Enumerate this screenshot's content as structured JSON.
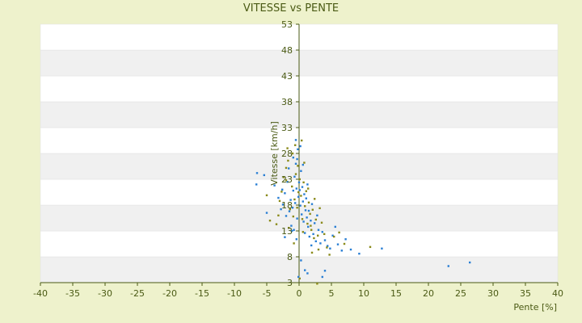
{
  "chart_data": {
    "type": "scatter",
    "title": "VITESSE vs PENTE",
    "xlabel": "Pente [%]",
    "ylabel": "Vitesse [km/h]",
    "xlim": [
      -40,
      40
    ],
    "ylim": [
      3,
      53
    ],
    "xticks": [
      "-40",
      "-35",
      "-30",
      "-25",
      "-20",
      "-15",
      "-10",
      "-5",
      "0",
      "5",
      "10",
      "15",
      "20",
      "25",
      "30",
      "35",
      "40"
    ],
    "yticks": [
      "3",
      "8",
      "13",
      "18",
      "23",
      "28",
      "33",
      "38",
      "43",
      "48",
      "53"
    ],
    "yticks_bottom_label": "3",
    "grid": "horizontal-bands",
    "legend": "none",
    "colors": {
      "background": "#eef2cc",
      "band_light": "#ffffff",
      "band_dark": "#f0f0f0",
      "axis": "#4a5a14",
      "series_blue": "#2a7fd4",
      "series_olive": "#8a8a1a"
    },
    "series": [
      {
        "color": "#2a7fd4",
        "points": [
          [
            -6.5,
            24.2
          ],
          [
            -6.6,
            22.0
          ],
          [
            -5.4,
            23.8
          ],
          [
            -5.0,
            16.5
          ],
          [
            -3.8,
            21.8
          ],
          [
            -3.2,
            19.4
          ],
          [
            -2.8,
            17.2
          ],
          [
            -2.5,
            18.1
          ],
          [
            -2.2,
            20.3
          ],
          [
            -2.0,
            15.9
          ],
          [
            -1.8,
            22.5
          ],
          [
            -1.5,
            16.8
          ],
          [
            -1.3,
            19.0
          ],
          [
            -1.2,
            14.0
          ],
          [
            -1.0,
            17.5
          ],
          [
            -0.9,
            20.8
          ],
          [
            -0.8,
            13.2
          ],
          [
            -0.7,
            23.5
          ],
          [
            -0.6,
            18.4
          ],
          [
            -0.5,
            26.0
          ],
          [
            -0.4,
            21.2
          ],
          [
            -0.3,
            15.4
          ],
          [
            -0.2,
            28.8
          ],
          [
            -0.1,
            19.6
          ],
          [
            0.0,
            22.4
          ],
          [
            0.1,
            20.9
          ],
          [
            0.2,
            17.9
          ],
          [
            0.3,
            24.6
          ],
          [
            0.4,
            16.2
          ],
          [
            0.5,
            21.5
          ],
          [
            0.6,
            18.7
          ],
          [
            0.7,
            14.8
          ],
          [
            0.8,
            20.1
          ],
          [
            0.9,
            12.6
          ],
          [
            1.0,
            17.0
          ],
          [
            1.1,
            19.3
          ],
          [
            1.2,
            15.6
          ],
          [
            1.3,
            22.0
          ],
          [
            1.4,
            13.8
          ],
          [
            1.5,
            16.9
          ],
          [
            1.6,
            11.9
          ],
          [
            1.8,
            15.0
          ],
          [
            2.0,
            18.2
          ],
          [
            2.2,
            12.4
          ],
          [
            2.4,
            14.5
          ],
          [
            2.6,
            11.0
          ],
          [
            2.8,
            16.0
          ],
          [
            3.0,
            13.2
          ],
          [
            3.3,
            10.6
          ],
          [
            3.6,
            12.8
          ],
          [
            4.0,
            11.2
          ],
          [
            4.4,
            10.1
          ],
          [
            4.8,
            9.6
          ],
          [
            5.2,
            12.1
          ],
          [
            5.6,
            13.8
          ],
          [
            6.0,
            10.4
          ],
          [
            6.6,
            9.2
          ],
          [
            7.2,
            11.4
          ],
          [
            8.0,
            9.4
          ],
          [
            9.3,
            8.6
          ],
          [
            12.8,
            9.6
          ],
          [
            23.1,
            6.2
          ],
          [
            26.4,
            6.9
          ],
          [
            0.9,
            5.4
          ],
          [
            1.3,
            4.8
          ],
          [
            3.6,
            4.1
          ],
          [
            4.0,
            5.3
          ],
          [
            -0.1,
            4.1
          ],
          [
            0.3,
            7.3
          ],
          [
            -0.5,
            30.6
          ],
          [
            0.2,
            29.4
          ],
          [
            -0.9,
            27.2
          ],
          [
            -1.6,
            25.1
          ],
          [
            -0.3,
            26.9
          ],
          [
            0.6,
            25.8
          ],
          [
            -2.6,
            21.0
          ],
          [
            -1.1,
            13.0
          ],
          [
            -2.2,
            11.8
          ],
          [
            -0.4,
            11.4
          ],
          [
            1.9,
            10.2
          ]
        ]
      },
      {
        "color": "#8a8a1a",
        "points": [
          [
            -5.0,
            19.9
          ],
          [
            -4.5,
            15.0
          ],
          [
            -3.5,
            14.3
          ],
          [
            -3.0,
            18.8
          ],
          [
            -2.7,
            20.6
          ],
          [
            -2.4,
            23.4
          ],
          [
            -2.0,
            25.2
          ],
          [
            -1.7,
            26.6
          ],
          [
            -1.4,
            17.2
          ],
          [
            -1.1,
            21.6
          ],
          [
            -0.9,
            15.8
          ],
          [
            -0.7,
            19.1
          ],
          [
            -0.5,
            24.0
          ],
          [
            -0.3,
            17.5
          ],
          [
            -0.1,
            20.5
          ],
          [
            0.1,
            23.0
          ],
          [
            0.3,
            19.8
          ],
          [
            0.5,
            15.3
          ],
          [
            0.7,
            22.4
          ],
          [
            0.9,
            17.8
          ],
          [
            1.1,
            20.7
          ],
          [
            1.3,
            14.4
          ],
          [
            1.5,
            18.5
          ],
          [
            1.7,
            16.3
          ],
          [
            1.9,
            13.2
          ],
          [
            2.1,
            17.1
          ],
          [
            2.3,
            11.6
          ],
          [
            2.6,
            15.2
          ],
          [
            2.9,
            12.1
          ],
          [
            3.2,
            17.4
          ],
          [
            3.5,
            14.6
          ],
          [
            3.9,
            12.4
          ],
          [
            4.3,
            9.8
          ],
          [
            4.7,
            8.4
          ],
          [
            5.4,
            11.9
          ],
          [
            6.2,
            12.7
          ],
          [
            7.0,
            10.5
          ],
          [
            11.0,
            9.9
          ],
          [
            2.8,
            2.8
          ],
          [
            0.1,
            3.8
          ],
          [
            -0.6,
            29.6
          ],
          [
            0.4,
            30.5
          ],
          [
            -1.0,
            28.0
          ],
          [
            -2.0,
            22.8
          ],
          [
            1.4,
            21.2
          ],
          [
            -0.2,
            25.6
          ],
          [
            2.4,
            19.2
          ],
          [
            -3.2,
            16.0
          ],
          [
            0.6,
            12.8
          ],
          [
            1.8,
            14.0
          ],
          [
            3.0,
            9.4
          ],
          [
            -1.6,
            13.6
          ],
          [
            -0.8,
            10.6
          ],
          [
            2.0,
            8.8
          ],
          [
            0.8,
            26.2
          ],
          [
            -1.8,
            29.0
          ]
        ]
      }
    ]
  }
}
